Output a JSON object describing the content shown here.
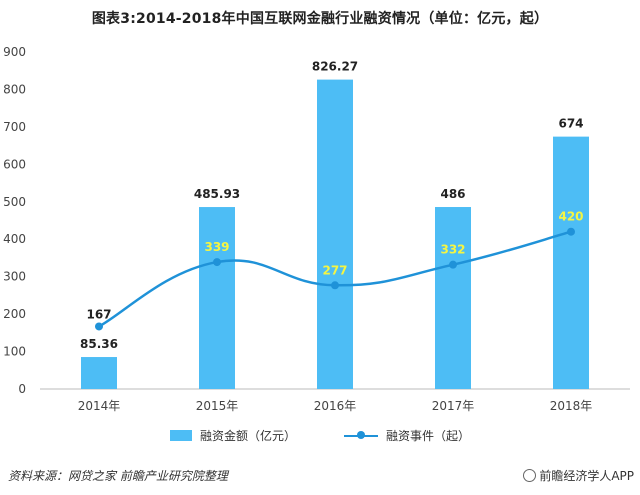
{
  "title": "图表3:2014-2018年中国互联网金融行业融资情况（单位：亿元，起）",
  "chart_data": {
    "type": "bar",
    "categories": [
      "2014年",
      "2015年",
      "2016年",
      "2017年",
      "2018年"
    ],
    "series": [
      {
        "name": "融资金额（亿元）",
        "type": "bar",
        "values": [
          85.36,
          485.93,
          826.27,
          486,
          674
        ],
        "labels": [
          "85.36",
          "485.93",
          "826.27",
          "486",
          "674"
        ],
        "color": "#4dbdf5"
      },
      {
        "name": "融资事件（起）",
        "type": "line",
        "values": [
          167,
          339,
          277,
          332,
          420
        ],
        "labels": [
          "167",
          "339",
          "277",
          "332",
          "420"
        ],
        "color": "#1f92d8"
      }
    ],
    "ylim": [
      0,
      900
    ],
    "yticks": [
      0,
      100,
      200,
      300,
      400,
      500,
      600,
      700,
      800,
      900
    ],
    "grid": false,
    "legend": "bottom"
  },
  "label_colors": {
    "bar_label": "#222222",
    "line_label_first": "#222222",
    "line_label": "#f5f542"
  },
  "footer": {
    "source": "资料来源：网贷之家 前瞻产业研究院整理",
    "brand": "前瞻经济学人APP"
  }
}
